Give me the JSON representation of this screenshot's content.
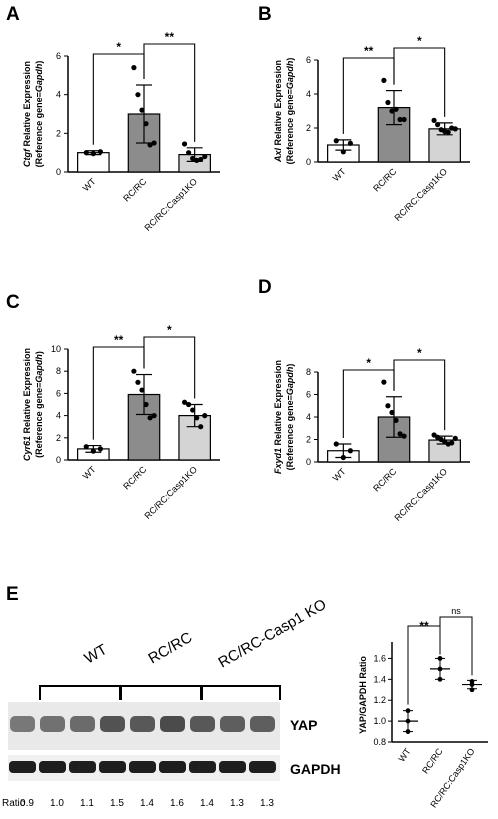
{
  "chart_data": [
    {
      "panel": "A",
      "type": "bar",
      "title": "Ctgf",
      "ylabel_prefix": "Ctgf",
      "ylabel_rest": " Relative Expression",
      "ylabel_line2_prefix": "(Reference gene=",
      "ylabel_line2_gene": "Gapdh",
      "ylabel_line2_suffix": ")",
      "categories": [
        "WT",
        "RC/RC",
        "RC/RC:Casp1KO"
      ],
      "values": [
        1.0,
        3.0,
        0.9
      ],
      "sd": [
        0.1,
        1.5,
        0.35
      ],
      "points": [
        [
          1.0,
          0.95,
          1.05
        ],
        [
          5.4,
          4.0,
          3.2,
          2.5,
          1.4,
          1.5
        ],
        [
          1.45,
          1.0,
          0.7,
          0.6,
          0.65,
          0.8
        ]
      ],
      "fills": [
        "#ffffff",
        "#8c8c8c",
        "#d4d4d4"
      ],
      "ylim": [
        0,
        6
      ],
      "yticks": [
        "0",
        "2",
        "4",
        "6"
      ],
      "sig": [
        {
          "a": 0,
          "b": 1,
          "label": "*"
        },
        {
          "a": 1,
          "b": 2,
          "label": "**"
        }
      ]
    },
    {
      "panel": "B",
      "type": "bar",
      "title": "Axl",
      "ylabel_prefix": "Axl",
      "ylabel_rest": " Relative Expression",
      "ylabel_line2_prefix": "(Reference gene=",
      "ylabel_line2_gene": "Gapdh",
      "ylabel_line2_suffix": ")",
      "categories": [
        "WT",
        "RC/RC",
        "RC/RC:Casp1KO"
      ],
      "values": [
        1.0,
        3.2,
        1.95
      ],
      "sd": [
        0.3,
        1.0,
        0.35
      ],
      "points": [
        [
          1.25,
          0.6,
          1.1
        ],
        [
          4.8,
          3.5,
          3.0,
          3.1,
          2.5,
          2.5
        ],
        [
          2.45,
          2.2,
          1.9,
          1.8,
          1.75,
          2.0,
          1.95
        ]
      ],
      "fills": [
        "#ffffff",
        "#8c8c8c",
        "#d4d4d4"
      ],
      "ylim": [
        0,
        6
      ],
      "yticks": [
        "0",
        "2",
        "4",
        "6"
      ],
      "sig": [
        {
          "a": 0,
          "b": 1,
          "label": "**"
        },
        {
          "a": 1,
          "b": 2,
          "label": "*"
        }
      ]
    },
    {
      "panel": "C",
      "type": "bar",
      "title": "Cyr61",
      "ylabel_prefix": "Cyr61",
      "ylabel_rest": " Relative Expression",
      "ylabel_line2_prefix": "(Reference gene=",
      "ylabel_line2_gene": "Gapdh",
      "ylabel_line2_suffix": ")",
      "categories": [
        "WT",
        "RC/RC",
        "RC/RC:Casp1KO"
      ],
      "values": [
        1.0,
        5.9,
        4.0
      ],
      "sd": [
        0.3,
        1.8,
        1.0
      ],
      "points": [
        [
          1.2,
          0.8,
          1.0
        ],
        [
          8.0,
          7.0,
          6.3,
          5.0,
          3.8,
          4.0
        ],
        [
          5.2,
          5.0,
          4.5,
          3.8,
          3.0,
          4.0
        ]
      ],
      "fills": [
        "#ffffff",
        "#8c8c8c",
        "#d4d4d4"
      ],
      "ylim": [
        0,
        10
      ],
      "yticks": [
        "0",
        "2",
        "4",
        "6",
        "8",
        "10"
      ],
      "sig": [
        {
          "a": 0,
          "b": 1,
          "label": "**"
        },
        {
          "a": 1,
          "b": 2,
          "label": "*"
        }
      ]
    },
    {
      "panel": "D",
      "type": "bar",
      "title": "Fxyd1",
      "ylabel_prefix": "Fxyd1",
      "ylabel_rest": " Relative Expression",
      "ylabel_line2_prefix": "(Reference gene=",
      "ylabel_line2_gene": "Gapdh",
      "ylabel_line2_suffix": ")",
      "categories": [
        "WT",
        "RC/RC",
        "RC/RC:Casp1KO"
      ],
      "values": [
        1.0,
        4.0,
        1.95
      ],
      "sd": [
        0.6,
        1.8,
        0.35
      ],
      "points": [
        [
          1.6,
          0.4,
          1.0
        ],
        [
          7.1,
          5.0,
          4.4,
          3.7,
          2.5,
          2.3
        ],
        [
          2.4,
          2.2,
          2.0,
          1.8,
          1.6,
          1.7,
          2.1
        ]
      ],
      "fills": [
        "#ffffff",
        "#8c8c8c",
        "#d4d4d4"
      ],
      "ylim": [
        0,
        8
      ],
      "yticks": [
        "0",
        "2",
        "4",
        "6",
        "8"
      ],
      "sig": [
        {
          "a": 0,
          "b": 1,
          "label": "*"
        },
        {
          "a": 1,
          "b": 2,
          "label": "*"
        }
      ]
    },
    {
      "panel": "E",
      "type": "scatter",
      "ylabel": "YAP/GAPDH Ratio",
      "categories": [
        "WT",
        "RC/RC",
        "RC/RC:Casp1KO"
      ],
      "means": [
        1.0,
        1.5,
        1.35
      ],
      "sd": [
        0.1,
        0.1,
        0.04
      ],
      "points": [
        [
          0.9,
          1.0,
          1.1
        ],
        [
          1.4,
          1.5,
          1.6
        ],
        [
          1.3,
          1.35,
          1.38
        ]
      ],
      "ylim": [
        0.8,
        1.7
      ],
      "yticks": [
        "0.8",
        "1.0",
        "1.2",
        "1.4",
        "1.6"
      ],
      "sig": [
        {
          "a": 0,
          "b": 1,
          "label": "**"
        },
        {
          "a": 1,
          "b": 2,
          "label": "ns"
        }
      ]
    }
  ],
  "blot": {
    "groups": [
      "WT",
      "RC/RC",
      "RC/RC-Casp1 KO"
    ],
    "labels": [
      "YAP",
      "GAPDH"
    ],
    "ratio_label": "Ratio",
    "ratios": [
      "0.9",
      "1.0",
      "1.1",
      "1.5",
      "1.4",
      "1.6",
      "1.4",
      "1.3",
      "1.3"
    ],
    "band_intensity_yap": [
      0.9,
      1.0,
      1.1,
      1.5,
      1.4,
      1.6,
      1.4,
      1.3,
      1.3
    ]
  },
  "colors": {
    "dark_bar": "#8c8c8c",
    "light_bar": "#d4d4d4",
    "ink": "#000000"
  }
}
